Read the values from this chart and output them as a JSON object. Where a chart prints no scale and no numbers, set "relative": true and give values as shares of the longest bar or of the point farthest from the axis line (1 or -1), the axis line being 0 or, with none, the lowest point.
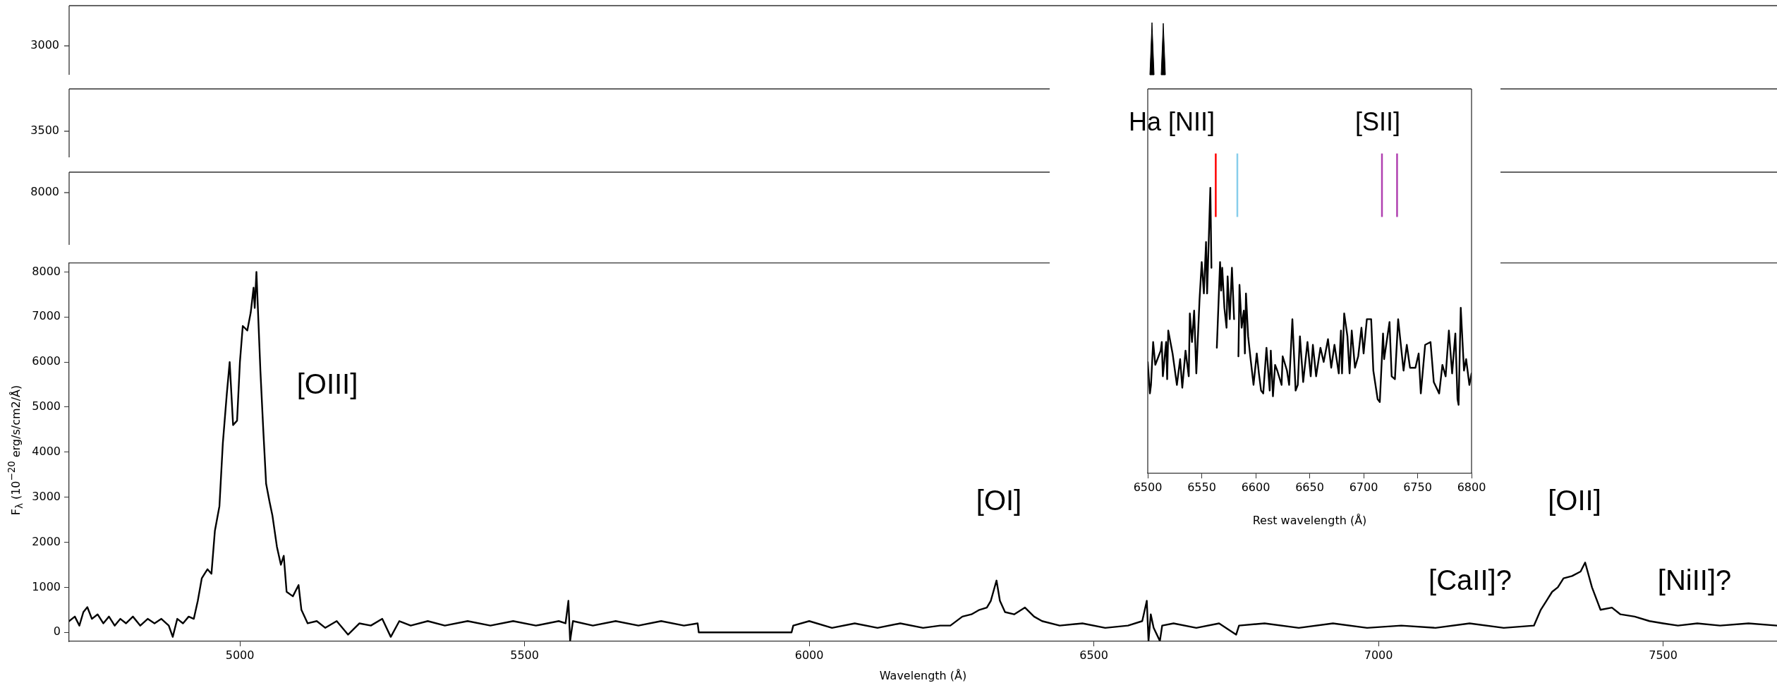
{
  "chart_data": [
    {
      "type": "other",
      "annotations": [
        "3000"
      ]
    },
    {
      "type": "other",
      "annotations": [
        "3500"
      ]
    },
    {
      "type": "other",
      "annotations": [
        "8000"
      ]
    },
    {
      "type": "line",
      "xlabel": "Wavelength (Å)",
      "ylabel": "F$_{λ}$ (10$^{−20}$ erg/s/cm2/Å)",
      "color": "#000000",
      "x": [
        4700,
        4710,
        4718,
        4725,
        4732,
        4740,
        4750,
        4760,
        4770,
        4780,
        4790,
        4800,
        4812,
        4825,
        4838,
        4850,
        4862,
        4875,
        4882,
        4890,
        4900,
        4910,
        4919,
        4926,
        4933,
        4938,
        4943,
        4950,
        4956,
        4964,
        4970,
        4977,
        4982,
        4988,
        4995,
        5000,
        5005,
        5013,
        5019,
        5024,
        5026,
        5029,
        5036,
        5041,
        5046,
        5052,
        5057,
        5065,
        5072,
        5077,
        5082,
        5093,
        5103,
        5108,
        5119,
        5135,
        5150,
        5170,
        5190,
        5210,
        5230,
        5250,
        5265,
        5280,
        5300,
        5330,
        5360,
        5400,
        5440,
        5480,
        5520,
        5560,
        5572,
        5577,
        5580,
        5585,
        5620,
        5660,
        5700,
        5740,
        5780,
        5804,
        5806,
        5969,
        5972,
        6000,
        6040,
        6080,
        6120,
        6160,
        6200,
        6230,
        6248,
        6269,
        6285,
        6299,
        6312,
        6319,
        6329,
        6335,
        6344,
        6360,
        6379,
        6395,
        6409,
        6440,
        6480,
        6520,
        6560,
        6585,
        6593,
        6596,
        6600,
        6605,
        6616,
        6620,
        6640,
        6680,
        6720,
        6750,
        6755,
        6800,
        6860,
        6920,
        6980,
        7040,
        7100,
        7160,
        7220,
        7273,
        7285,
        7295,
        7305,
        7315,
        7325,
        7340,
        7355,
        7363,
        7375,
        7390,
        7410,
        7425,
        7450,
        7476,
        7500,
        7526,
        7560,
        7600,
        7650,
        7700
      ],
      "values": [
        250,
        350,
        150,
        450,
        560,
        300,
        400,
        200,
        350,
        150,
        300,
        200,
        350,
        150,
        300,
        200,
        300,
        150,
        -100,
        300,
        200,
        350,
        300,
        700,
        1200,
        1300,
        1400,
        1300,
        2250,
        2800,
        4200,
        5300,
        6000,
        4600,
        4700,
        6000,
        6800,
        6700,
        7100,
        7650,
        7200,
        8000,
        5800,
        4500,
        3300,
        2900,
        2600,
        1900,
        1500,
        1700,
        900,
        800,
        1050,
        500,
        200,
        250,
        100,
        250,
        -50,
        200,
        150,
        300,
        -100,
        250,
        150,
        250,
        150,
        250,
        150,
        250,
        150,
        250,
        200,
        700,
        -190,
        250,
        150,
        250,
        150,
        250,
        150,
        200,
        0,
        0,
        150,
        250,
        100,
        200,
        100,
        200,
        100,
        150,
        150,
        350,
        400,
        500,
        550,
        700,
        1150,
        700,
        450,
        400,
        550,
        350,
        250,
        150,
        200,
        100,
        150,
        250,
        700,
        -190,
        400,
        100,
        -190,
        150,
        200,
        100,
        200,
        -50,
        150,
        200,
        100,
        200,
        100,
        150,
        100,
        200,
        100,
        150,
        500,
        700,
        900,
        1000,
        1200,
        1250,
        1350,
        1550,
        1000,
        500,
        550,
        400,
        350,
        250,
        200,
        150,
        200,
        150,
        200,
        150
      ],
      "xlim": [
        4700,
        7700
      ],
      "ylim": [
        -200,
        8200
      ],
      "xticks": [
        5000,
        5500,
        6000,
        6500,
        7000,
        7500
      ],
      "yticks": [
        0,
        1000,
        2000,
        3000,
        4000,
        5000,
        6000,
        7000,
        8000
      ],
      "annotations": [
        "[OIII]",
        "[OI]",
        "[OII]",
        "[CaII]?",
        "[NiII]?"
      ]
    },
    {
      "type": "line",
      "xlabel": "Rest wavelength (Å)",
      "color": "#000000",
      "relative": true,
      "tick_labels": "x",
      "x": [
        6500,
        6502,
        6503,
        6505,
        6507,
        6509,
        6512,
        6513,
        6514,
        6517,
        6518,
        6519,
        6523,
        6527,
        6530,
        6532,
        6535,
        6538,
        6539,
        6541,
        6543,
        6545,
        6548,
        6550,
        6552,
        6554,
        6555,
        6558,
        6559,
        6560,
        6564,
        6567,
        6568,
        6569,
        6571,
        6573,
        6574,
        6576,
        6578,
        6580,
        6581,
        6584,
        6585,
        6587,
        6589,
        6590,
        6591,
        6593,
        6595,
        6598,
        6601,
        6603,
        6605,
        6607,
        6610,
        6613,
        6614,
        6616,
        6618,
        6620,
        6624,
        6625,
        6629,
        6631,
        6634,
        6637,
        6639,
        6641,
        6644,
        6648,
        6651,
        6653,
        6656,
        6660,
        6663,
        6667,
        6670,
        6673,
        6677,
        6679,
        6680,
        6682,
        6685,
        6687,
        6689,
        6692,
        6695,
        6698,
        6700,
        6703,
        6707,
        6709,
        6713,
        6715,
        6718,
        6719,
        6724,
        6726,
        6729,
        6732,
        6737,
        6740,
        6743,
        6748,
        6751,
        6753,
        6757,
        6762,
        6765,
        6770,
        6773,
        6776,
        6779,
        6782,
        6785,
        6787,
        6788,
        6790,
        6793,
        6795,
        6798,
        6800
      ],
      "values": [
        0.39,
        0.28,
        0.31,
        0.46,
        0.38,
        0.4,
        0.43,
        0.46,
        0.34,
        0.46,
        0.33,
        0.5,
        0.42,
        0.31,
        0.4,
        0.3,
        0.43,
        0.34,
        0.56,
        0.46,
        0.57,
        0.35,
        0.61,
        0.74,
        0.63,
        0.81,
        0.63,
        1,
        0.72,
        null,
        0.44,
        0.74,
        0.64,
        0.72,
        0.58,
        0.51,
        0.69,
        0.54,
        0.72,
        0.54,
        null,
        0.41,
        0.66,
        0.51,
        0.57,
        0.42,
        0.63,
        0.48,
        0.41,
        0.31,
        0.42,
        0.35,
        0.29,
        0.28,
        0.44,
        0.29,
        0.43,
        0.27,
        0.38,
        0.36,
        0.31,
        0.41,
        0.36,
        0.31,
        0.54,
        0.29,
        0.31,
        0.48,
        0.32,
        0.46,
        0.34,
        0.45,
        0.34,
        0.44,
        0.39,
        0.47,
        0.37,
        0.45,
        0.35,
        0.5,
        0.35,
        0.56,
        0.48,
        0.35,
        0.5,
        0.37,
        0.41,
        0.51,
        0.42,
        0.54,
        0.54,
        0.36,
        0.26,
        0.25,
        0.49,
        0.4,
        0.53,
        0.34,
        0.33,
        0.54,
        0.36,
        0.45,
        0.37,
        0.37,
        0.42,
        0.28,
        0.45,
        0.46,
        0.32,
        0.28,
        0.38,
        0.34,
        0.5,
        0.35,
        0.49,
        0.26,
        0.24,
        0.58,
        0.36,
        0.4,
        0.31,
        0.35
      ],
      "xlim": [
        6500,
        6800
      ],
      "xticks": [
        6500,
        6550,
        6600,
        6650,
        6700,
        6750,
        6800
      ],
      "ref_lines": [
        {
          "axis": "x",
          "value": 6563,
          "color": "#ff0000"
        },
        {
          "axis": "x",
          "value": 6583,
          "color": "#87ceeb"
        },
        {
          "axis": "x",
          "value": 6717,
          "color": "#b040b0"
        },
        {
          "axis": "x",
          "value": 6731,
          "color": "#b040b0"
        }
      ],
      "annotations": [
        "Ha [NII]",
        "[SII]"
      ]
    }
  ]
}
